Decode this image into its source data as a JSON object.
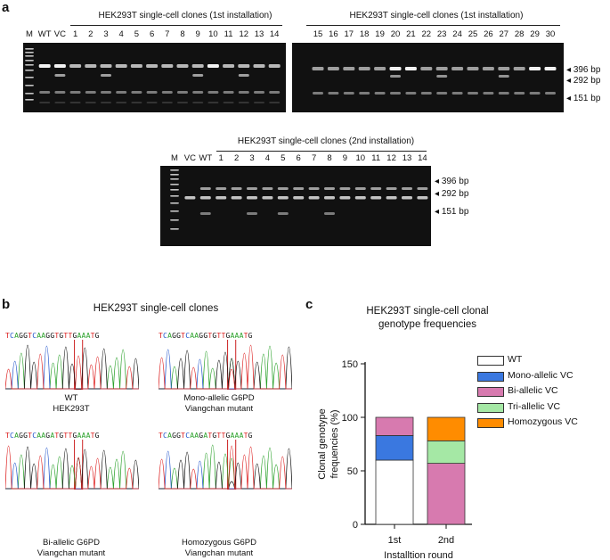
{
  "panels": {
    "a": "a",
    "b": "b",
    "c": "c"
  },
  "gel1": {
    "title": "HEK293T single-cell clones (1st installation)",
    "lanes": [
      "M",
      "WT",
      "VC",
      "1",
      "2",
      "3",
      "4",
      "5",
      "6",
      "7",
      "8",
      "9",
      "10",
      "11",
      "12",
      "13",
      "14"
    ]
  },
  "gel2": {
    "title": "HEK293T single-cell clones (1st installation)",
    "lanes": [
      "15",
      "16",
      "17",
      "18",
      "19",
      "20",
      "21",
      "22",
      "23",
      "24",
      "25",
      "26",
      "27",
      "28",
      "29",
      "30"
    ],
    "bands": [
      "396 bp",
      "292 bp",
      "151 bp"
    ]
  },
  "gel3": {
    "title": "HEK293T single-cell clones (2nd installation)",
    "lanes": [
      "M",
      "VC",
      "WT",
      "1",
      "2",
      "3",
      "4",
      "5",
      "6",
      "7",
      "8",
      "9",
      "10",
      "11",
      "12",
      "13",
      "14"
    ],
    "bands": [
      "396 bp",
      "292 bp",
      "151 bp"
    ]
  },
  "panel_b": {
    "title": "HEK293T single-cell clones",
    "sequences": [
      "TCAGGTCAAGGTGTTGAAATG",
      "TCAGGTCAAGGTGTTGAAATG",
      "TCAGGTCAAGATGTTGAAATG",
      "TCAGGTCAAGATGTTGAAATG"
    ],
    "labels": [
      {
        "line1": "WT",
        "line2": "HEK293T"
      },
      {
        "line1": "Mono-allelic G6PD",
        "line2": "Viangchan mutant"
      },
      {
        "line1": "Bi-allelic G6PD",
        "line2": "Viangchan mutant"
      },
      {
        "line1": "Homozygous G6PD",
        "line2": "Viangchan mutant"
      }
    ]
  },
  "chart_data": {
    "type": "bar",
    "stacked": true,
    "title": "HEK293T single-cell clonal genotype frequencies",
    "title_line1": "HEK293T single-cell clonal",
    "title_line2": "genotype frequencies",
    "xlabel": "Installtion round",
    "ylabel_line1": "Clonal genotype",
    "ylabel_line2": "frequencies (%)",
    "categories": [
      "1st",
      "2nd"
    ],
    "ylim": [
      0,
      150
    ],
    "yticks": [
      0,
      50,
      100,
      150
    ],
    "series": [
      {
        "name": "WT",
        "color": "#ffffff",
        "values": [
          60,
          0
        ]
      },
      {
        "name": "Mono-allelic VC",
        "color": "#3a78e0",
        "values": [
          23,
          0
        ]
      },
      {
        "name": "Bi-allelic VC",
        "color": "#d77aaf",
        "values": [
          17,
          57
        ]
      },
      {
        "name": "Tri-allelic VC",
        "color": "#a5e8a5",
        "values": [
          0,
          21
        ]
      },
      {
        "name": "Homozygous VC",
        "color": "#ff8c00",
        "values": [
          0,
          22
        ]
      }
    ]
  }
}
